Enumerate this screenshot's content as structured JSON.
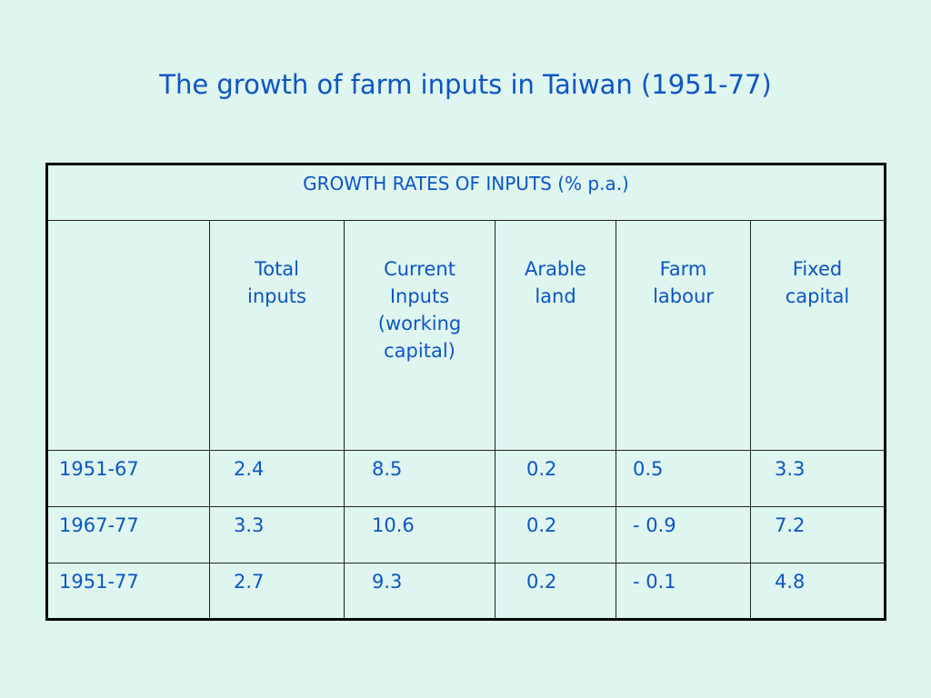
{
  "title": "The growth of farm inputs in Taiwan (1951-77)",
  "table": {
    "caption": "GROWTH RATES OF INPUTS (% p.a.)",
    "headers": [
      "Total inputs",
      "Current Inputs (working capital)",
      "Arable land",
      "Farm labour",
      "Fixed capital"
    ],
    "rows": [
      [
        "1951-67",
        "2.4",
        "8.5",
        "0.2",
        "0.5",
        "3.3"
      ],
      [
        "1967-77",
        "3.3",
        "10.6",
        "0.2",
        "- 0.9",
        "7.2"
      ],
      [
        "1951-77",
        "2.7",
        "9.3",
        "0.2",
        "- 0.1",
        "4.8"
      ]
    ]
  }
}
